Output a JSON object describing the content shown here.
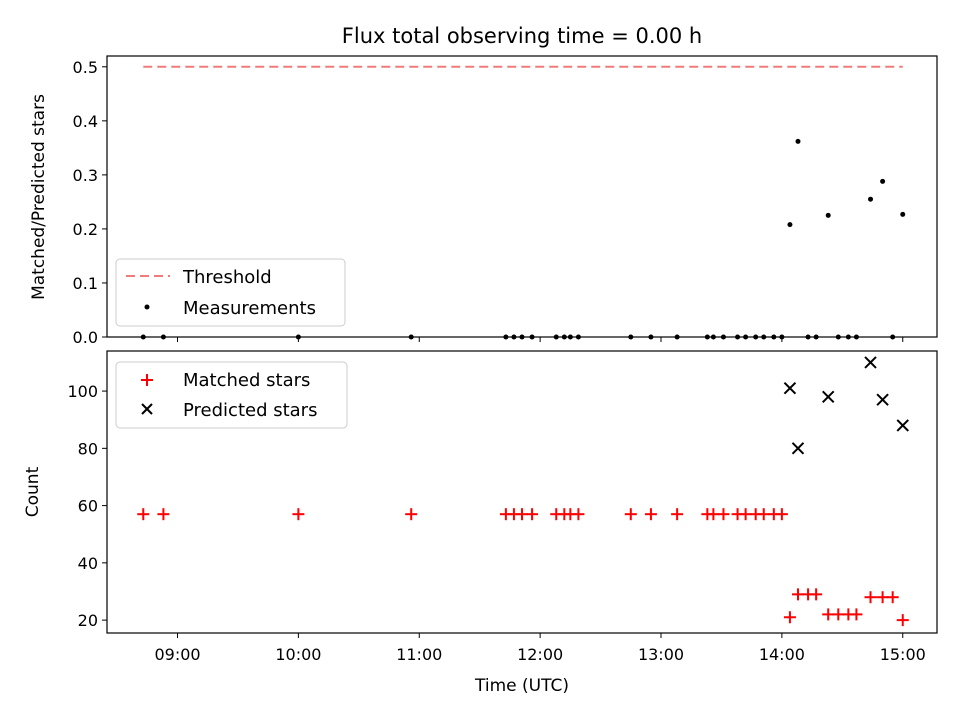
{
  "title": "Flux total observing time = 0.00 h",
  "x_axis": {
    "label": "Time (UTC)",
    "ticks": [
      "09:00",
      "10:00",
      "11:00",
      "12:00",
      "13:00",
      "14:00",
      "15:00"
    ]
  },
  "top_panel": {
    "ylabel": "Matched/Predicted stars",
    "legend": {
      "threshold_label": "Threshold",
      "measurements_label": "Measurements"
    }
  },
  "bottom_panel": {
    "ylabel": "Count",
    "legend": {
      "matched_label": "Matched stars",
      "predicted_label": "Predicted stars"
    }
  },
  "colors": {
    "threshold": "#f07b7b",
    "measurements": "#000000",
    "matched": "#ff0000",
    "predicted": "#000000"
  },
  "chart_data": [
    {
      "type": "scatter",
      "panel": "top",
      "xlabel": "",
      "ylabel": "Matched/Predicted stars",
      "xlim": [
        "08:25",
        "15:17"
      ],
      "ylim": [
        0,
        0.52
      ],
      "yticks": [
        0.0,
        0.1,
        0.2,
        0.3,
        0.4,
        0.5
      ],
      "legend_position": "lower-left",
      "threshold": {
        "name": "Threshold",
        "style": "dashed",
        "value": 0.5,
        "x_range": [
          "08:43",
          "15:00"
        ]
      },
      "series": [
        {
          "name": "Measurements",
          "marker": "dot",
          "x": [
            "08:43",
            "08:53",
            "10:00",
            "10:56",
            "11:43",
            "11:47",
            "11:51",
            "11:56",
            "12:08",
            "12:12",
            "12:15",
            "12:19",
            "12:45",
            "12:55",
            "13:08",
            "13:23",
            "13:26",
            "13:31",
            "13:38",
            "13:42",
            "13:47",
            "13:51",
            "13:56",
            "14:00",
            "14:04",
            "14:08",
            "14:13",
            "14:17",
            "14:23",
            "14:28",
            "14:33",
            "14:37",
            "14:44",
            "14:50",
            "14:55",
            "15:00"
          ],
          "y": [
            0,
            0,
            0,
            0,
            0,
            0,
            0,
            0,
            0,
            0,
            0,
            0,
            0,
            0,
            0,
            0,
            0,
            0,
            0,
            0,
            0,
            0,
            0,
            0,
            0.208,
            0.362,
            0,
            0,
            0.225,
            0,
            0,
            0,
            0.255,
            0.288,
            0,
            0.227
          ]
        }
      ]
    },
    {
      "type": "scatter",
      "panel": "bottom",
      "xlabel": "Time (UTC)",
      "ylabel": "Count",
      "xlim": [
        "08:25",
        "15:17"
      ],
      "ylim": [
        15.5,
        114
      ],
      "yticks": [
        20,
        40,
        60,
        80,
        100
      ],
      "legend_position": "upper-left",
      "series": [
        {
          "name": "Matched stars",
          "marker": "plus",
          "x": [
            "08:43",
            "08:53",
            "10:00",
            "10:56",
            "11:43",
            "11:47",
            "11:51",
            "11:56",
            "12:08",
            "12:12",
            "12:15",
            "12:19",
            "12:45",
            "12:55",
            "13:08",
            "13:23",
            "13:26",
            "13:31",
            "13:38",
            "13:42",
            "13:47",
            "13:51",
            "13:56",
            "14:00",
            "14:04",
            "14:08",
            "14:13",
            "14:17",
            "14:23",
            "14:28",
            "14:33",
            "14:37",
            "14:44",
            "14:50",
            "14:55",
            "15:00"
          ],
          "y": [
            57,
            57,
            57,
            57,
            57,
            57,
            57,
            57,
            57,
            57,
            57,
            57,
            57,
            57,
            57,
            57,
            57,
            57,
            57,
            57,
            57,
            57,
            57,
            57,
            21,
            29,
            29,
            29,
            22,
            22,
            22,
            22,
            28,
            28,
            28,
            20
          ]
        },
        {
          "name": "Predicted stars",
          "marker": "x",
          "x": [
            "14:04",
            "14:08",
            "14:23",
            "14:44",
            "14:50",
            "15:00"
          ],
          "y": [
            101,
            80,
            98,
            110,
            97,
            88
          ]
        }
      ]
    }
  ]
}
